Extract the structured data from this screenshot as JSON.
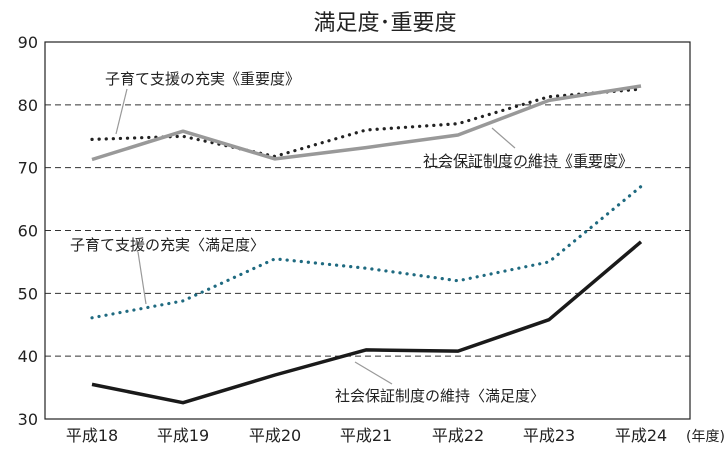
{
  "chart_data": {
    "type": "line",
    "title": "満足度･重要度",
    "x": [
      "平成18",
      "平成19",
      "平成20",
      "平成21",
      "平成22",
      "平成23",
      "平成24"
    ],
    "x_unit": "(年度)",
    "ylim": [
      30,
      90
    ],
    "yticks": [
      30,
      40,
      50,
      60,
      70,
      80,
      90
    ],
    "grid": "horizontal dashed",
    "series": [
      {
        "name": "子育て支援の充実《重要度》",
        "style": "dotted",
        "color": "#222222",
        "values": [
          74.5,
          75.0,
          71.8,
          76.0,
          77.0,
          81.3,
          82.5
        ]
      },
      {
        "name": "社会保証制度の維持《重要度》",
        "style": "solid",
        "color": "#999999",
        "values": [
          71.3,
          75.8,
          71.4,
          73.2,
          75.2,
          80.7,
          83.0
        ]
      },
      {
        "name": "子育て支援の充実〈満足度〉",
        "style": "dotted",
        "color": "#1f6a80",
        "values": [
          46.1,
          48.8,
          55.5,
          54.0,
          52.0,
          55.0,
          67.0
        ]
      },
      {
        "name": "社会保証制度の維持〈満足度〉",
        "style": "solid",
        "color": "#1a1a1a",
        "values": [
          35.5,
          32.6,
          37.0,
          41.0,
          40.8,
          45.8,
          58.2
        ]
      }
    ],
    "annotations": [
      "子育て支援の充実《重要度》",
      "社会保証制度の維持《重要度》",
      "子育て支援の充実〈満足度〉",
      "社会保証制度の維持〈満足度〉"
    ]
  }
}
